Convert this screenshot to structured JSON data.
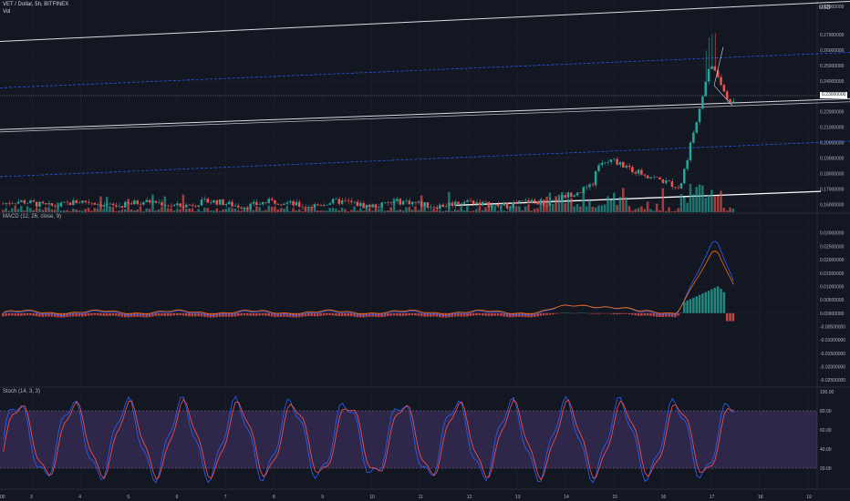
{
  "header": {
    "symbol": "VET / Dollar, 5h, BITFINEX",
    "volume_label": "Vol",
    "currency": "USD",
    "top_price": "0.29000000"
  },
  "price_badge": "0.23000000",
  "colors": {
    "background": "#131722",
    "up": "#26a69a",
    "down": "#ef5350",
    "white_line": "#ffffff",
    "dashed_line": "#2962ff",
    "macd_line": "#2962ff",
    "signal_line": "#ff6d00",
    "stoch_k": "#2962ff",
    "stoch_d": "#ff5252",
    "stoch_band": "#7e57c2"
  },
  "chart_data": [
    {
      "type": "candlestick",
      "title": "VET / Dollar, 5h, BITFINEX",
      "ylabel": "USD",
      "ylim": [
        0.155,
        0.29
      ],
      "y_ticks": [
        "0.27000000",
        "0.26000000",
        "0.25000000",
        "0.24000000",
        "0.23000000",
        "0.22000000",
        "0.21000000",
        "0.20000000",
        "0.19000000",
        "0.18000000",
        "0.17000000",
        "0.16000000"
      ],
      "x_ticks": [
        "3",
        "4",
        "5",
        "6",
        "7",
        "8",
        "9",
        "10",
        "11",
        "12",
        "13",
        "14",
        "15",
        "16",
        "17",
        "18",
        "19"
      ],
      "note": "Price flat near 0.160 through day 14, rises to ~0.19 around day 15, spikes to ~0.28 high near day 17, closes near 0.225."
    },
    {
      "type": "line",
      "title": "MACD (12, 26, close, 9)",
      "y_ticks": [
        "0.03000000",
        "0.02500000",
        "0.02000000",
        "0.01500000",
        "0.01000000",
        "0.00500000",
        "0.00000000",
        "-0.00500000",
        "-0.01000000",
        "-0.01500000",
        "-0.02000000",
        "-0.02500000"
      ],
      "ylim": [
        -0.027,
        0.034
      ],
      "series": []
    },
    {
      "type": "line",
      "title": "Stoch (14, 3, 3)",
      "y_ticks": [
        "100.00",
        "80.00",
        "60.00",
        "40.00",
        "20.00"
      ],
      "ylim": [
        0,
        100
      ],
      "bands": [
        20,
        80
      ],
      "series": []
    }
  ],
  "macd_label": "MACD (12, 26, close, 9)",
  "stoch_label": "Stoch (14, 3, 3)"
}
